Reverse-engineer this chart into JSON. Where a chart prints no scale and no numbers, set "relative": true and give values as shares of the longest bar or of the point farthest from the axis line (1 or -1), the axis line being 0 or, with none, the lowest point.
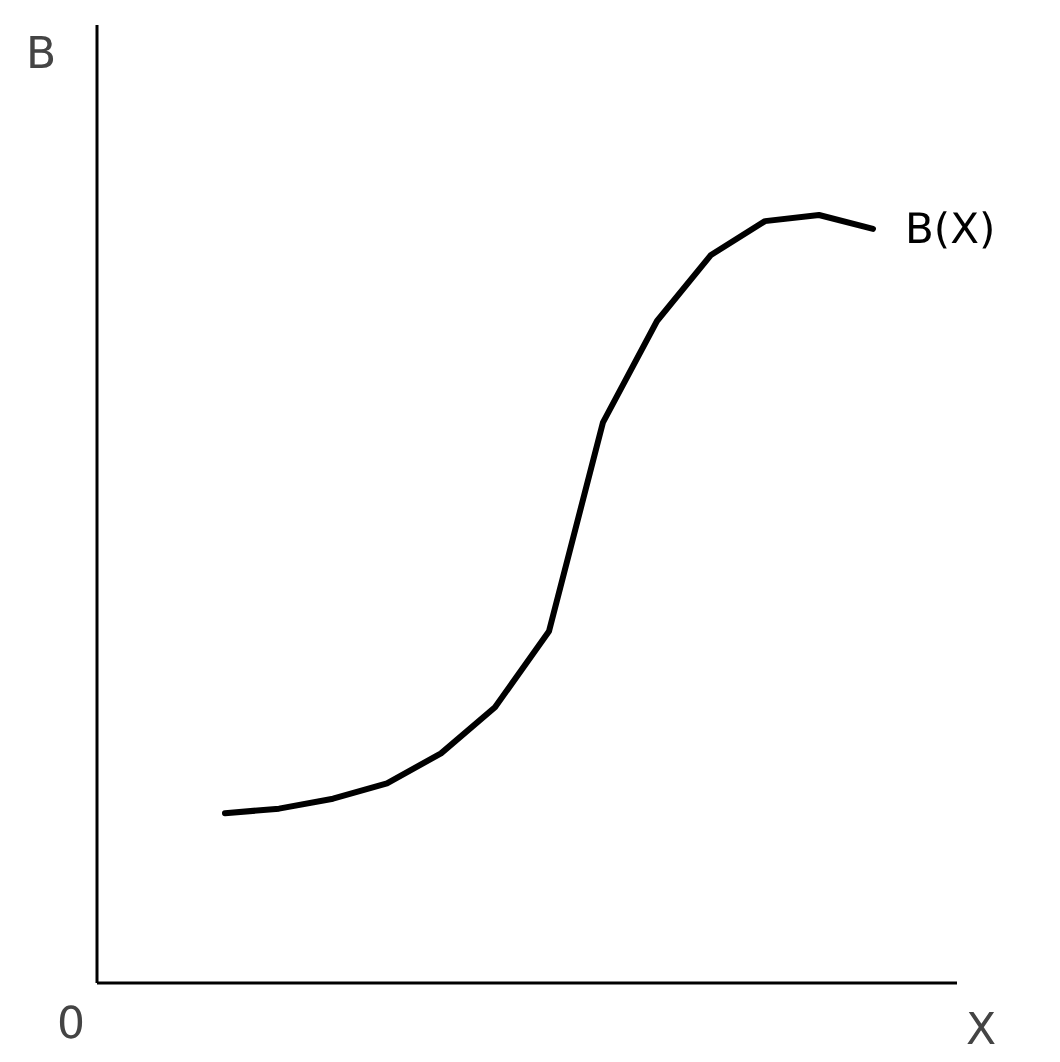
{
  "chart_data": {
    "type": "line",
    "relative": true,
    "xlabel": "X",
    "ylabel": "B",
    "annotations": [
      "0"
    ],
    "categories": [
      null,
      null,
      null,
      null,
      null,
      null,
      null,
      null,
      null,
      null,
      null,
      null,
      null
    ],
    "series": [
      {
        "name": "B(X)",
        "color": "#000000",
        "values": [
          0.221,
          0.227,
          0.24,
          0.26,
          0.299,
          0.359,
          0.458,
          0.73,
          0.862,
          0.948,
          0.992,
          1,
          0.982
        ]
      }
    ],
    "marker": "none",
    "line_style": "solid"
  }
}
